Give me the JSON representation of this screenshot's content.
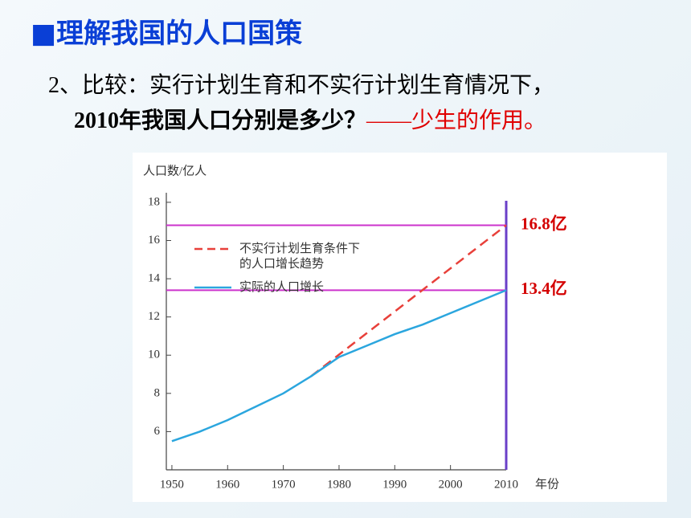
{
  "slide": {
    "title": "■理解我国的人口国策",
    "question_line1": "2、比较：实行计划生育和不实行计划生育情况下，",
    "question_line2": "2010年我国人口分别是多少？",
    "question_highlight": "——少生的作用。"
  },
  "chart_data": {
    "type": "line",
    "y_label": "人口数/亿人",
    "x_label": "年份",
    "xlim": [
      1949,
      2010
    ],
    "xticks": [
      1950,
      1960,
      1970,
      1980,
      1990,
      2000,
      2010
    ],
    "ylim": [
      4,
      18.5
    ],
    "yticks": [
      6,
      8,
      10,
      12,
      14,
      16,
      18
    ],
    "series": [
      {
        "name": "不实行计划生育条件下的人口增长趋势",
        "color": "#e8403a",
        "dashed": true,
        "x": [
          1975,
          2010
        ],
        "values": [
          8.9,
          16.8
        ]
      },
      {
        "name": "实际的人口增长",
        "color": "#2ba6de",
        "dashed": false,
        "x": [
          1950,
          1955,
          1960,
          1965,
          1970,
          1975,
          1980,
          1985,
          1990,
          1995,
          2000,
          2005,
          2010
        ],
        "values": [
          5.5,
          6.0,
          6.6,
          7.3,
          8.0,
          8.9,
          9.9,
          10.5,
          11.1,
          11.6,
          12.2,
          12.8,
          13.4
        ]
      }
    ],
    "annotations": [
      {
        "value": 16.8,
        "label": "16.8亿"
      },
      {
        "value": 13.4,
        "label": "13.4亿"
      }
    ],
    "reference_color": "#cc33cc",
    "vertical_color": "#6a3fc8",
    "annotation_color": "#d40000"
  }
}
